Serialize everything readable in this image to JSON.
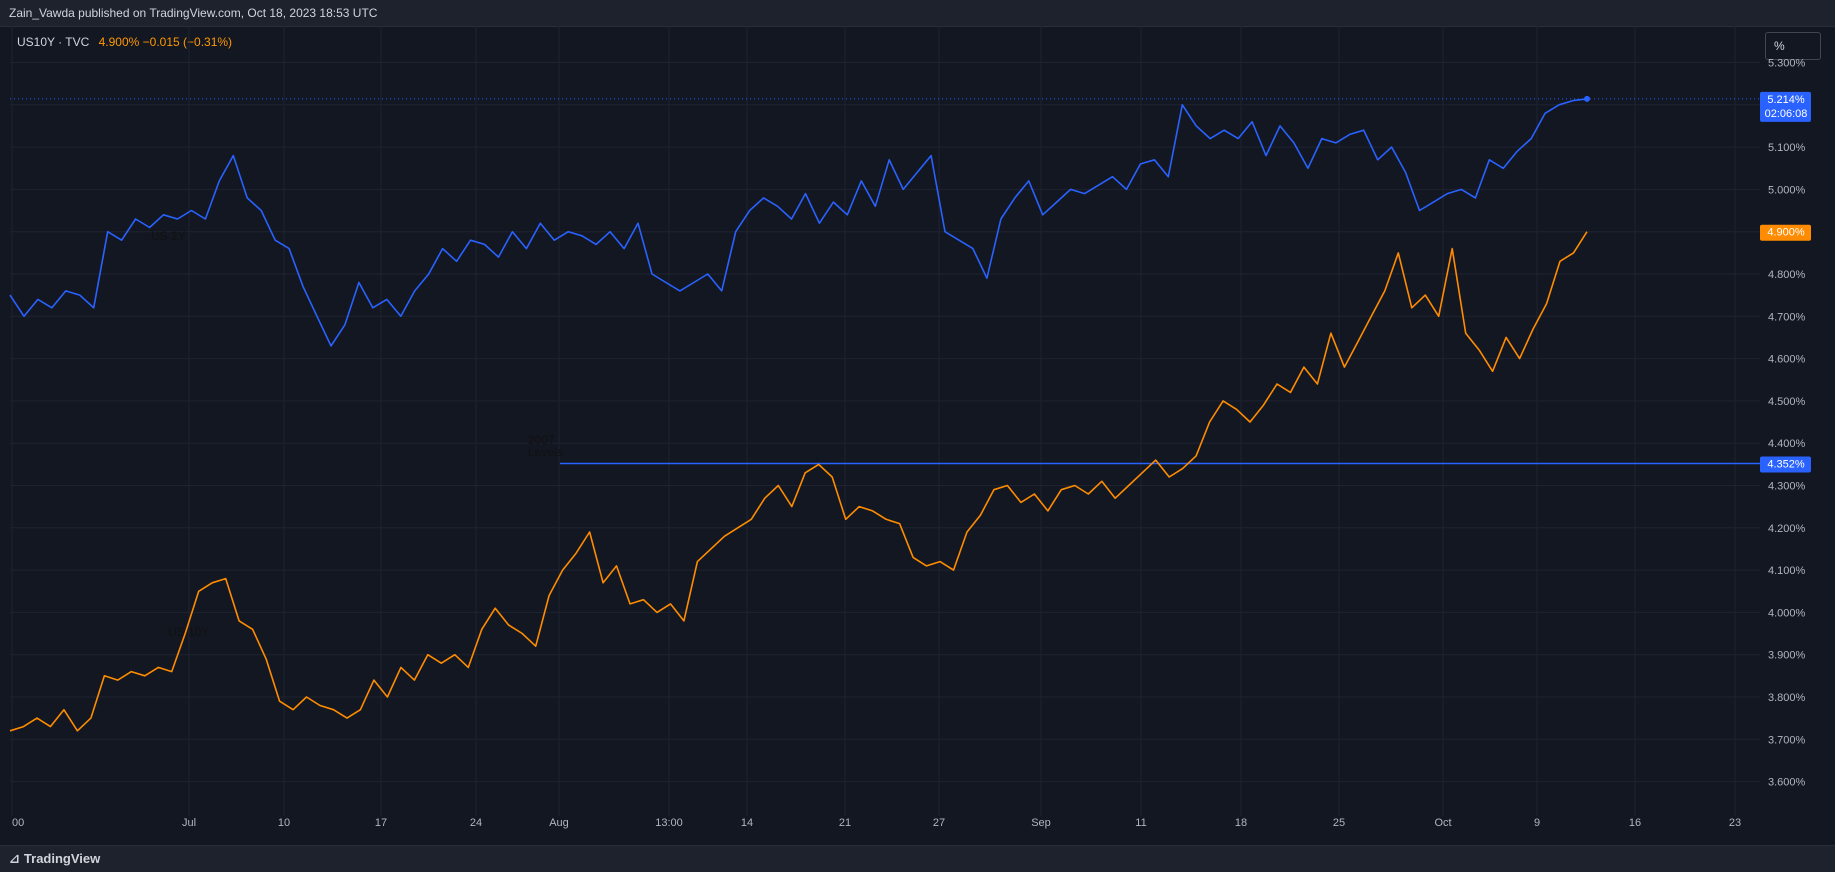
{
  "header": {
    "published": "Zain_Vawda published on TradingView.com, Oct 18, 2023 18:53 UTC"
  },
  "legend": {
    "symbol": "US10Y · TVC",
    "price_change": "4.900%  −0.015 (−0.31%)"
  },
  "scale_button": "%",
  "footer": {
    "brand": "TradingView"
  },
  "chart_data": {
    "type": "line",
    "y_unit": "%",
    "ylim": [
      3.56,
      5.36
    ],
    "yticks": [
      "5.300%",
      "5.200%",
      "5.100%",
      "5.000%",
      "4.900%",
      "4.800%",
      "4.700%",
      "4.600%",
      "4.500%",
      "4.400%",
      "4.300%",
      "4.200%",
      "4.100%",
      "4.000%",
      "3.900%",
      "3.800%",
      "3.700%",
      "3.600%"
    ],
    "xticks": [
      "00",
      "Jul",
      "10",
      "17",
      "24",
      "Aug",
      "13:00",
      "14",
      "21",
      "27",
      "Sep",
      "11",
      "18",
      "25",
      "Oct",
      "9",
      "16",
      "23"
    ],
    "colors": {
      "us2y": "#2962ff",
      "us10y": "#ff8c00",
      "level": "#2962ff"
    },
    "series": [
      {
        "label": "US 2Y",
        "values": [
          4.75,
          4.7,
          4.74,
          4.72,
          4.76,
          4.75,
          4.72,
          4.9,
          4.88,
          4.93,
          4.91,
          4.94,
          4.93,
          4.95,
          4.93,
          5.02,
          5.08,
          4.98,
          4.95,
          4.88,
          4.86,
          4.77,
          4.7,
          4.63,
          4.68,
          4.78,
          4.72,
          4.74,
          4.7,
          4.76,
          4.8,
          4.86,
          4.83,
          4.88,
          4.87,
          4.84,
          4.9,
          4.86,
          4.92,
          4.88,
          4.9,
          4.89,
          4.87,
          4.9,
          4.86,
          4.92,
          4.8,
          4.78,
          4.76,
          4.78,
          4.8,
          4.76,
          4.9,
          4.95,
          4.98,
          4.96,
          4.93,
          4.99,
          4.92,
          4.97,
          4.94,
          5.02,
          4.96,
          5.07,
          5.0,
          5.04,
          5.08,
          4.9,
          4.88,
          4.86,
          4.79,
          4.93,
          4.98,
          5.02,
          4.94,
          4.97,
          5.0,
          4.99,
          5.01,
          5.03,
          5.0,
          5.06,
          5.07,
          5.03,
          5.2,
          5.15,
          5.12,
          5.14,
          5.12,
          5.16,
          5.08,
          5.15,
          5.11,
          5.05,
          5.12,
          5.11,
          5.13,
          5.14,
          5.07,
          5.1,
          5.04,
          4.95,
          4.97,
          4.99,
          5.0,
          4.98,
          5.07,
          5.05,
          5.09,
          5.12,
          5.18,
          5.2,
          5.21,
          5.214
        ],
        "label_value": "5.214%",
        "countdown": "02:06:08"
      },
      {
        "label": "US 10Y",
        "values": [
          3.72,
          3.73,
          3.75,
          3.73,
          3.77,
          3.72,
          3.75,
          3.85,
          3.84,
          3.86,
          3.85,
          3.87,
          3.86,
          3.95,
          4.05,
          4.07,
          4.08,
          3.98,
          3.96,
          3.89,
          3.79,
          3.77,
          3.8,
          3.78,
          3.77,
          3.75,
          3.77,
          3.84,
          3.8,
          3.87,
          3.84,
          3.9,
          3.88,
          3.9,
          3.87,
          3.96,
          4.01,
          3.97,
          3.95,
          3.92,
          4.04,
          4.1,
          4.14,
          4.19,
          4.07,
          4.11,
          4.02,
          4.03,
          4.0,
          4.02,
          3.98,
          4.12,
          4.15,
          4.18,
          4.2,
          4.22,
          4.27,
          4.3,
          4.25,
          4.33,
          4.35,
          4.32,
          4.22,
          4.25,
          4.24,
          4.22,
          4.21,
          4.13,
          4.11,
          4.12,
          4.1,
          4.19,
          4.23,
          4.29,
          4.3,
          4.26,
          4.28,
          4.24,
          4.29,
          4.3,
          4.28,
          4.31,
          4.27,
          4.3,
          4.33,
          4.36,
          4.32,
          4.34,
          4.37,
          4.45,
          4.5,
          4.48,
          4.45,
          4.49,
          4.54,
          4.52,
          4.58,
          4.54,
          4.66,
          4.58,
          4.64,
          4.7,
          4.76,
          4.85,
          4.72,
          4.75,
          4.7,
          4.86,
          4.66,
          4.62,
          4.57,
          4.65,
          4.6,
          4.67,
          4.73,
          4.83,
          4.85,
          4.9
        ],
        "label_value": "4.900%"
      }
    ],
    "level_line": {
      "value": 4.352,
      "label_value": "4.352%"
    },
    "annotations": {
      "us2y": "US 2Y",
      "us10y": "US 10Y",
      "level_1": "2007",
      "level_2": "Levels"
    }
  }
}
